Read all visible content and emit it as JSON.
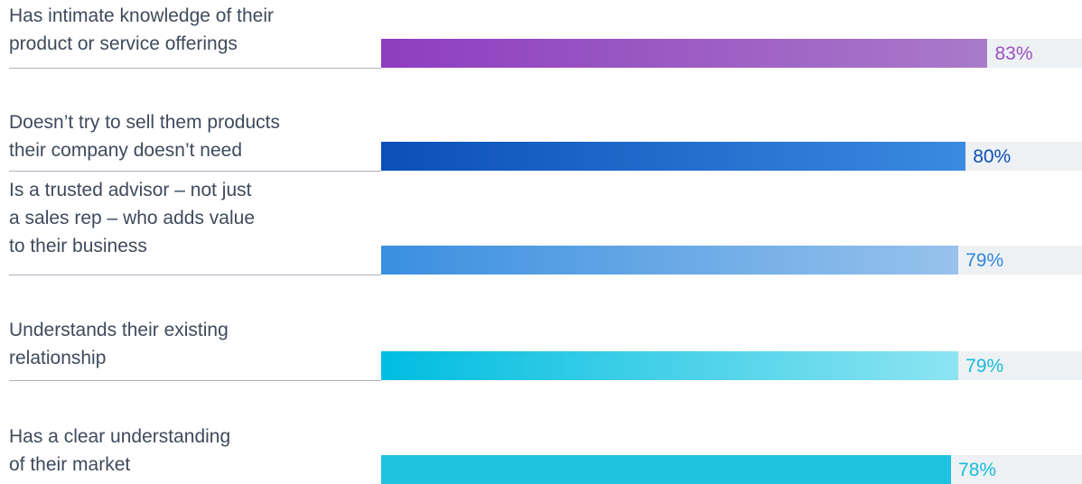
{
  "chart_data": {
    "type": "bar",
    "orientation": "horizontal",
    "categories": [
      "Has intimate knowledge of their\nproduct or service offerings",
      "Doesn’t try to sell them products\ntheir company doesn’t need",
      "Is a trusted advisor – not just\na sales rep – who adds value\nto their business",
      "Understands their existing\nrelationship",
      "Has a clear understanding\nof their market"
    ],
    "values": [
      83,
      80,
      79,
      79,
      78
    ],
    "value_labels": [
      "83%",
      "80%",
      "79%",
      "79%",
      "78%"
    ],
    "xlim": [
      0,
      100
    ],
    "grid": false,
    "legend": "none",
    "colors": [
      {
        "start": "#8e3dbf",
        "end": "#a97ac9",
        "text": "#9b4fc2"
      },
      {
        "start": "#0b4fb8",
        "end": "#3a8ae0",
        "text": "#0b4fb8"
      },
      {
        "start": "#3a8fe0",
        "end": "#97c2ec",
        "text": "#2f86dc"
      },
      {
        "start": "#00bde0",
        "end": "#8de4f1",
        "text": "#16bcdb"
      },
      {
        "start": "#1fc3df",
        "end": "#1fc3df",
        "text": "#16bcdb"
      }
    ],
    "track_color": "#eef1f3"
  }
}
